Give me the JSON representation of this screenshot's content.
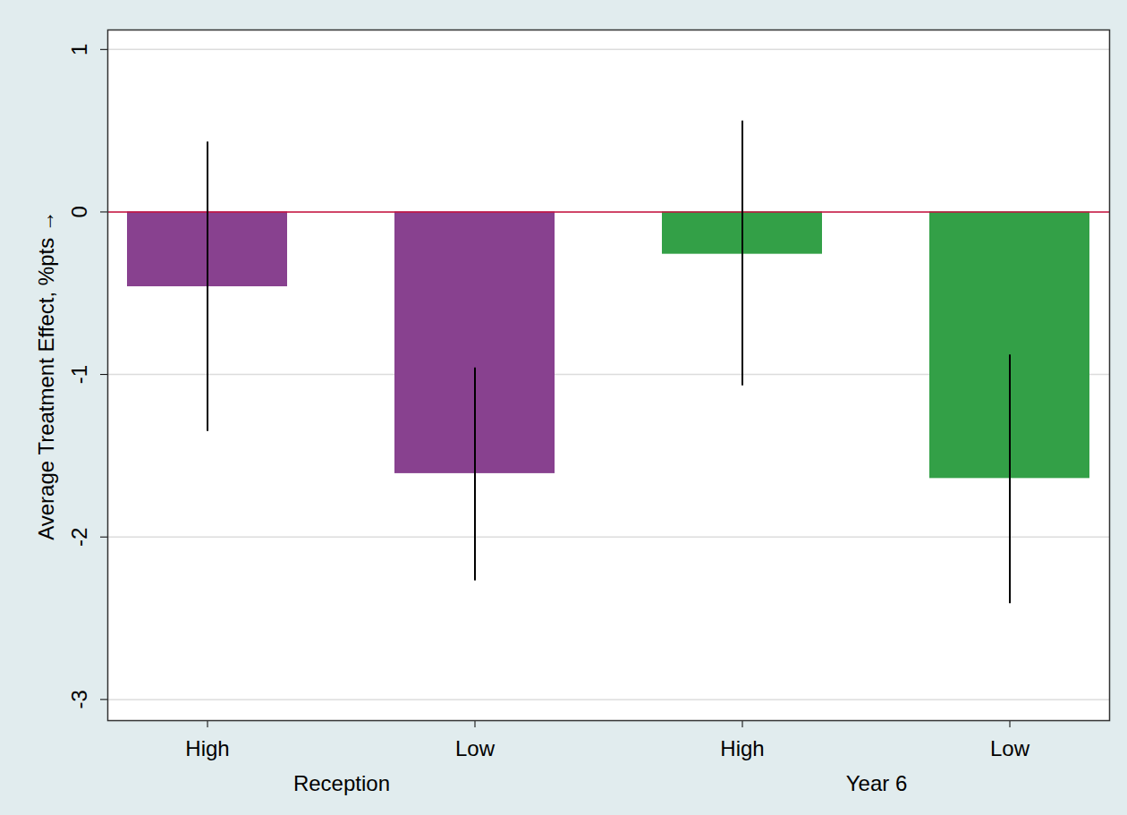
{
  "chart_data": {
    "type": "bar",
    "categories": [
      "High",
      "Low",
      "High",
      "Low"
    ],
    "groups": [
      "Reception",
      "Reception",
      "Year 6",
      "Year 6"
    ],
    "values": [
      -0.46,
      -1.61,
      -0.26,
      -1.64
    ],
    "error_low": [
      -1.35,
      -2.27,
      -1.07,
      -2.41
    ],
    "error_high": [
      0.43,
      -0.96,
      0.56,
      -0.88
    ],
    "colors": [
      "#88418f",
      "#88418f",
      "#33a047",
      "#33a047"
    ],
    "ylabel": "Average Treatment Effect, %pts",
    "ylim": [
      -3.13,
      1.12
    ],
    "yticks": [
      -3,
      -2,
      -1,
      0,
      1
    ],
    "grid": true,
    "reference_line": 0
  }
}
